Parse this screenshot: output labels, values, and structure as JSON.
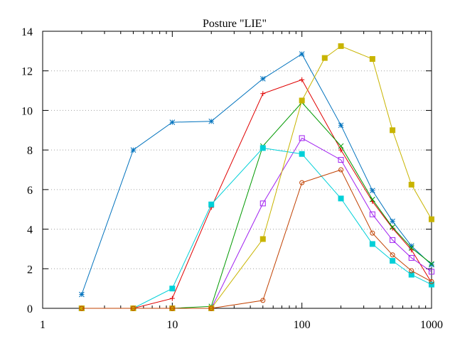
{
  "chart_data": {
    "type": "line",
    "title": "Posture \"LIE\"",
    "xlabel": "",
    "ylabel": "",
    "x_scale": "log",
    "xlim": [
      1,
      1000
    ],
    "ylim": [
      0,
      14
    ],
    "x_ticks": [
      1,
      10,
      100,
      1000
    ],
    "x_tick_labels": [
      "1",
      "10",
      "100",
      "1000"
    ],
    "y_ticks": [
      0,
      2,
      4,
      6,
      8,
      10,
      12,
      14
    ],
    "y_tick_labels": [
      "0",
      "2",
      "4",
      "6",
      "8",
      "10",
      "12",
      "14"
    ],
    "grid": "horizontal dotted",
    "legend": "none",
    "series": [
      {
        "color": "#0072bd",
        "marker": "asterisk",
        "x": [
          2,
          5,
          10,
          20,
          50,
          100,
          200,
          350,
          500,
          700,
          1000
        ],
        "y": [
          0.7,
          8.0,
          9.4,
          9.45,
          11.6,
          12.85,
          9.25,
          5.95,
          4.4,
          3.15,
          2.2
        ]
      },
      {
        "color": "#e00000",
        "marker": "plus",
        "x": [
          2,
          5,
          10,
          20,
          50,
          100,
          200,
          350,
          500,
          700,
          1000
        ],
        "y": [
          0,
          0,
          0.5,
          5.1,
          10.85,
          11.55,
          8.0,
          5.4,
          4.05,
          2.95,
          1.3
        ]
      },
      {
        "color": "#009900",
        "marker": "x",
        "x": [
          2,
          5,
          10,
          20,
          50,
          100,
          200,
          350,
          500,
          700,
          1000
        ],
        "y": [
          0,
          0,
          0,
          0.1,
          8.2,
          10.4,
          8.2,
          5.5,
          4.1,
          3.05,
          2.25
        ]
      },
      {
        "color": "#a020f0",
        "marker": "open-square",
        "x": [
          2,
          5,
          10,
          20,
          50,
          100,
          200,
          350,
          500,
          700,
          1000
        ],
        "y": [
          0,
          0,
          0,
          0,
          5.3,
          8.6,
          7.5,
          4.75,
          3.45,
          2.55,
          1.85
        ]
      },
      {
        "color": "#00d0d8",
        "marker": "filled-square",
        "x": [
          2,
          5,
          10,
          20,
          50,
          100,
          200,
          350,
          500,
          700,
          1000
        ],
        "y": [
          0,
          0,
          1.0,
          5.25,
          8.1,
          7.8,
          5.55,
          3.25,
          2.4,
          1.7,
          1.2
        ]
      },
      {
        "color": "#c8b400",
        "marker": "filled-square",
        "x": [
          2,
          5,
          10,
          20,
          50,
          100,
          150,
          200,
          350,
          500,
          700,
          1000
        ],
        "y": [
          0,
          0,
          0,
          0,
          3.5,
          10.5,
          12.65,
          13.25,
          12.6,
          9.0,
          6.25,
          4.5
        ]
      },
      {
        "color": "#c04000",
        "marker": "open-circle",
        "x": [
          2,
          5,
          10,
          20,
          50,
          100,
          200,
          350,
          500,
          700,
          1000
        ],
        "y": [
          0,
          0,
          0,
          0,
          0.4,
          6.35,
          7.0,
          3.8,
          2.7,
          1.9,
          1.35
        ]
      }
    ]
  }
}
